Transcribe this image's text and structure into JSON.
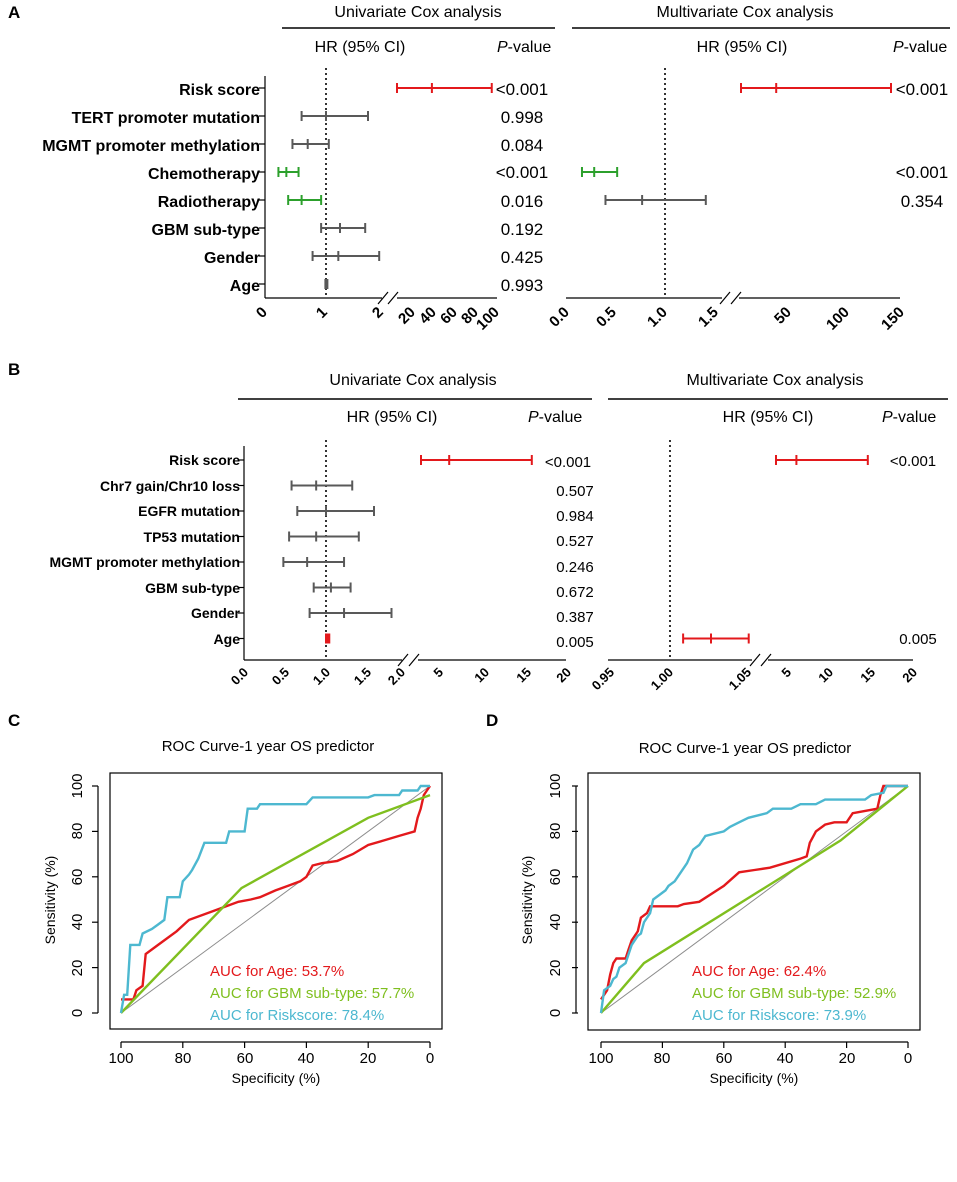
{
  "chart_data": [
    {
      "panel": "A",
      "type": "forest",
      "variables": [
        "Risk score",
        "TERT promoter mutation",
        "MGMT promoter methylation",
        "Chemotherapy",
        "Radiotherapy",
        "GBM sub-type",
        "Gender",
        "Age"
      ],
      "univariate": {
        "title": "Univariate Cox analysis",
        "hr_header": "HR (95% CI)",
        "p_header": "P",
        "p_header_suffix": "-value",
        "axis_ticks": [
          "0",
          "1",
          "2",
          "20",
          "40",
          "60",
          "80",
          "100"
        ],
        "rows": [
          {
            "hr": 38,
            "lo": 14,
            "hi": 95,
            "p": "<0.001",
            "color": "#e3191c"
          },
          {
            "hr": 1.0,
            "lo": 0.6,
            "hi": 1.75,
            "p": "0.998",
            "color": "#595959"
          },
          {
            "hr": 0.7,
            "lo": 0.45,
            "hi": 1.05,
            "p": "0.084",
            "color": "#595959"
          },
          {
            "hr": 0.35,
            "lo": 0.22,
            "hi": 0.55,
            "p": "<0.001",
            "color": "#2ca02c"
          },
          {
            "hr": 0.6,
            "lo": 0.38,
            "hi": 0.92,
            "p": "0.016",
            "color": "#2ca02c"
          },
          {
            "hr": 1.25,
            "lo": 0.92,
            "hi": 1.7,
            "p": "0.192",
            "color": "#595959"
          },
          {
            "hr": 1.22,
            "lo": 0.78,
            "hi": 1.95,
            "p": "0.425",
            "color": "#595959"
          },
          {
            "hr": 1.0,
            "lo": 0.99,
            "hi": 1.01,
            "p": "0.993",
            "color": "#595959"
          }
        ]
      },
      "multivariate": {
        "title": "Multivariate Cox analysis",
        "hr_header": "HR (95% CI)",
        "p_header": "P",
        "p_header_suffix": "-value",
        "axis_ticks": [
          "0.0",
          "0.5",
          "1.0",
          "1.5",
          "50",
          "100",
          "150"
        ],
        "rows": [
          {
            "hr": 38,
            "lo": 5,
            "hi": 140,
            "p": "<0.001",
            "color": "#e3191c"
          },
          {
            "hr": 0.3,
            "lo": 0.17,
            "hi": 0.54,
            "p": "<0.001",
            "color": "#2ca02c",
            "row": 3
          },
          {
            "hr": 0.78,
            "lo": 0.42,
            "hi": 1.4,
            "p": "0.354",
            "color": "#595959",
            "row": 4
          }
        ]
      }
    },
    {
      "panel": "B",
      "type": "forest",
      "variables": [
        "Risk score",
        "Chr7 gain/Chr10 loss",
        "EGFR mutation",
        "TP53 mutation",
        "MGMT promoter methylation",
        "GBM sub-type",
        "Gender",
        "Age"
      ],
      "univariate": {
        "title": "Univariate Cox analysis",
        "hr_header": "HR (95% CI)",
        "p_header": "P",
        "p_header_suffix": "-value",
        "axis_ticks": [
          "0.0",
          "0.5",
          "1.0",
          "1.5",
          "2.0",
          "5",
          "10",
          "15",
          "20"
        ],
        "rows": [
          {
            "hr": 6,
            "lo": 2.3,
            "hi": 15.5,
            "p": "<0.001",
            "color": "#e3191c"
          },
          {
            "hr": 0.88,
            "lo": 0.58,
            "hi": 1.32,
            "p": "0.507",
            "color": "#595959"
          },
          {
            "hr": 1.0,
            "lo": 0.65,
            "hi": 1.6,
            "p": "0.984",
            "color": "#595959"
          },
          {
            "hr": 0.88,
            "lo": 0.55,
            "hi": 1.4,
            "p": "0.527",
            "color": "#595959"
          },
          {
            "hr": 0.77,
            "lo": 0.48,
            "hi": 1.22,
            "p": "0.246",
            "color": "#595959"
          },
          {
            "hr": 1.06,
            "lo": 0.85,
            "hi": 1.3,
            "p": "0.672",
            "color": "#595959"
          },
          {
            "hr": 1.22,
            "lo": 0.8,
            "hi": 1.85,
            "p": "0.387",
            "color": "#595959"
          },
          {
            "hr": 1.02,
            "lo": 1.0,
            "hi": 1.04,
            "p": "0.005",
            "color": "#e3191c"
          }
        ]
      },
      "multivariate": {
        "title": "Multivariate Cox analysis",
        "hr_header": "HR (95% CI)",
        "p_header": "P",
        "p_header_suffix": "-value",
        "axis_ticks": [
          "0.95",
          "1.00",
          "1.05",
          "5",
          "10",
          "15",
          "20"
        ],
        "rows": [
          {
            "hr": 6,
            "lo": 3,
            "hi": 14.5,
            "p": "<0.001",
            "color": "#e3191c",
            "row": 0
          },
          {
            "hr": 1.025,
            "lo": 1.008,
            "hi": 1.048,
            "p": "0.005",
            "color": "#e3191c",
            "row": 7
          }
        ]
      }
    },
    {
      "panel": "C",
      "type": "line",
      "title": "ROC Curve-1 year OS predictor",
      "xlabel": "Specificity (%)",
      "ylabel": "Sensitivity (%)",
      "xlim": [
        100,
        0
      ],
      "ylim": [
        0,
        100
      ],
      "xticks": [
        "100",
        "80",
        "60",
        "40",
        "20",
        "0"
      ],
      "yticks": [
        "0",
        "20",
        "40",
        "60",
        "80",
        "100"
      ],
      "series": [
        {
          "name": "AUC for Age: 53.7%",
          "color": "#e3191c",
          "points": [
            [
              100,
              6
            ],
            [
              96,
              6
            ],
            [
              95,
              10
            ],
            [
              93,
              12
            ],
            [
              92,
              26
            ],
            [
              88,
              30
            ],
            [
              82,
              36
            ],
            [
              78,
              41
            ],
            [
              70,
              45
            ],
            [
              62,
              49
            ],
            [
              58,
              50
            ],
            [
              55,
              51
            ],
            [
              50,
              54
            ],
            [
              46,
              56
            ],
            [
              42,
              58
            ],
            [
              40,
              60
            ],
            [
              38,
              65
            ],
            [
              35,
              66
            ],
            [
              30,
              67
            ],
            [
              25,
              70
            ],
            [
              20,
              74
            ],
            [
              15,
              76
            ],
            [
              10,
              78
            ],
            [
              5,
              80
            ],
            [
              4,
              86
            ],
            [
              3,
              90
            ],
            [
              2,
              96
            ],
            [
              1,
              98
            ],
            [
              0,
              100
            ]
          ]
        },
        {
          "name": "AUC for GBM sub-type: 57.7%",
          "color": "#7fbf1f",
          "points": [
            [
              100,
              0
            ],
            [
              61,
              55
            ],
            [
              20,
              86
            ],
            [
              0,
              96
            ]
          ]
        },
        {
          "name": "AUC for Riskscore: 78.4%",
          "color": "#4db8d0",
          "points": [
            [
              100,
              0
            ],
            [
              99,
              8
            ],
            [
              98,
              8
            ],
            [
              97,
              30
            ],
            [
              94,
              30
            ],
            [
              93,
              35
            ],
            [
              90,
              37
            ],
            [
              88,
              39
            ],
            [
              86,
              41
            ],
            [
              85,
              51
            ],
            [
              81,
              51
            ],
            [
              80,
              58
            ],
            [
              78,
              61
            ],
            [
              77,
              63
            ],
            [
              75,
              68
            ],
            [
              73,
              75
            ],
            [
              66,
              75
            ],
            [
              65,
              80
            ],
            [
              60,
              80
            ],
            [
              59,
              90
            ],
            [
              56,
              90
            ],
            [
              55,
              92
            ],
            [
              40,
              92
            ],
            [
              38,
              95
            ],
            [
              20,
              95
            ],
            [
              18,
              96
            ],
            [
              10,
              96
            ],
            [
              9,
              98
            ],
            [
              4,
              98
            ],
            [
              3,
              100
            ],
            [
              0,
              100
            ]
          ]
        }
      ]
    },
    {
      "panel": "D",
      "type": "line",
      "title": "ROC Curve-1 year OS predictor",
      "xlabel": "Specificity (%)",
      "ylabel": "Sensitivity (%)",
      "xlim": [
        100,
        0
      ],
      "ylim": [
        0,
        100
      ],
      "xticks": [
        "100",
        "80",
        "60",
        "40",
        "20",
        "0"
      ],
      "yticks": [
        "0",
        "20",
        "40",
        "60",
        "80",
        "100"
      ],
      "series": [
        {
          "name": "AUC for Age: 62.4%",
          "color": "#e3191c",
          "points": [
            [
              100,
              6
            ],
            [
              99,
              8
            ],
            [
              98,
              10
            ],
            [
              97,
              17
            ],
            [
              96,
              22
            ],
            [
              95,
              24
            ],
            [
              92,
              24
            ],
            [
              91,
              28
            ],
            [
              90,
              32
            ],
            [
              88,
              36
            ],
            [
              87,
              42
            ],
            [
              85,
              44
            ],
            [
              84,
              47
            ],
            [
              75,
              47
            ],
            [
              73,
              48
            ],
            [
              68,
              49
            ],
            [
              60,
              56
            ],
            [
              55,
              62
            ],
            [
              50,
              63
            ],
            [
              45,
              64
            ],
            [
              35,
              68
            ],
            [
              33,
              69
            ],
            [
              32,
              75
            ],
            [
              30,
              80
            ],
            [
              27,
              83
            ],
            [
              24,
              84
            ],
            [
              20,
              84
            ],
            [
              18,
              88
            ],
            [
              10,
              90
            ],
            [
              9,
              96
            ],
            [
              8,
              100
            ],
            [
              0,
              100
            ]
          ]
        },
        {
          "name": "AUC for GBM sub-type: 52.9%",
          "color": "#7fbf1f",
          "points": [
            [
              100,
              0
            ],
            [
              86,
              22
            ],
            [
              22,
              76
            ],
            [
              0,
              100
            ]
          ]
        },
        {
          "name": "AUC for Riskscore: 73.9%",
          "color": "#4db8d0",
          "points": [
            [
              100,
              0
            ],
            [
              99,
              10
            ],
            [
              97,
              12
            ],
            [
              96,
              15
            ],
            [
              95,
              16
            ],
            [
              94,
              20
            ],
            [
              92,
              22
            ],
            [
              90,
              30
            ],
            [
              88,
              34
            ],
            [
              87,
              35
            ],
            [
              86,
              40
            ],
            [
              84,
              44
            ],
            [
              83,
              50
            ],
            [
              81,
              52
            ],
            [
              79,
              54
            ],
            [
              78,
              56
            ],
            [
              76,
              58
            ],
            [
              74,
              62
            ],
            [
              72,
              66
            ],
            [
              70,
              72
            ],
            [
              68,
              74
            ],
            [
              66,
              78
            ],
            [
              60,
              80
            ],
            [
              58,
              82
            ],
            [
              55,
              84
            ],
            [
              52,
              86
            ],
            [
              46,
              88
            ],
            [
              44,
              90
            ],
            [
              38,
              90
            ],
            [
              35,
              92
            ],
            [
              30,
              92
            ],
            [
              27,
              94
            ],
            [
              14,
              94
            ],
            [
              12,
              96
            ],
            [
              8,
              97
            ],
            [
              7,
              100
            ],
            [
              0,
              100
            ]
          ]
        }
      ]
    }
  ]
}
